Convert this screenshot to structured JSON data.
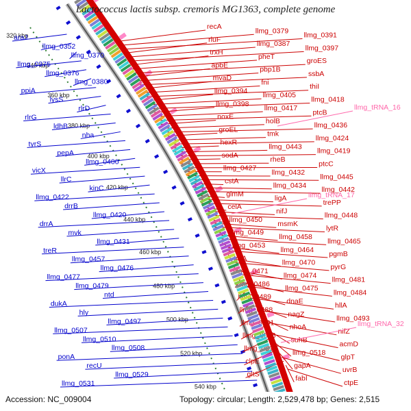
{
  "title": "Lactococcus lactis subsp. cremoris MG1363, complete genome",
  "footer": {
    "accession": "Accession: NC_009004",
    "topology": "Topology: circular; Length: 2,529,478 bp; Genes: 2,515"
  },
  "colors": {
    "forward_strand": "#cc0000",
    "reverse_strand": "#0000cc",
    "trna": "#ff66aa",
    "backbone": "#888888",
    "tick": "#2e7d32"
  },
  "ruler_labels": [
    "320 kbp",
    "340 kbp",
    "360 kbp",
    "380 kbp",
    "400 kbp",
    "420 kbp",
    "440 kbp",
    "460 kbp",
    "480 kbp",
    "500 kbp",
    "520 kbp",
    "540 kbp"
  ],
  "genes_blue": [
    "araJ",
    "llmg_0352",
    "llmg_0370",
    "llmg_0375",
    "llmg_0376",
    "llmg_0380",
    "ppiA",
    "lysS",
    "rlrD",
    "rlrG",
    "ldhB",
    "nha",
    "tyrS",
    "pepA",
    "llmg_0400",
    "vicX",
    "llrC",
    "kinC",
    "llmg_0422",
    "drrB",
    "llmg_0420",
    "drrA",
    "mvk",
    "llmg_0431",
    "treR",
    "llmg_0457",
    "llmg_0476",
    "llmg_0477",
    "llmg_0479",
    "ntd",
    "dukA",
    "hly",
    "llmg_0497",
    "llmg_0507",
    "llmg_0510",
    "llmg_0508",
    "ponA",
    "recU",
    "llmg_0529",
    "llmg_0531"
  ],
  "genes_red": [
    "recA",
    "llmg_0379",
    "llmg_0391",
    "rluF",
    "llmg_0387",
    "llmg_0397",
    "trxH",
    "pheT",
    "groES",
    "apbE",
    "pbp1B",
    "ssbA",
    "mvaD",
    "fni",
    "thiI",
    "llmg_0394",
    "llmg_0405",
    "llmg_0418",
    "llmg_0398",
    "llmg_0417",
    "ptcB",
    "noxE",
    "holB",
    "llmg_0436",
    "groEL",
    "tmk",
    "llmg_0424",
    "hexR",
    "llmg_0443",
    "llmg_0419",
    "sodA",
    "rheB",
    "ptcC",
    "llmg_0427",
    "llmg_0432",
    "llmg_0445",
    "cstA",
    "llmg_0434",
    "llmg_0442",
    "glmM",
    "ligA",
    "trePP",
    "celA",
    "nifJ",
    "llmg_0448",
    "llmg_0450",
    "msmK",
    "lytR",
    "llmg_0449",
    "llmg_0458",
    "llmg_0465",
    "llmg_0453",
    "llmg_0464",
    "pgmB",
    "truA",
    "llmg_0470",
    "pyrG",
    "llmg_0471",
    "llmg_0474",
    "llmg_0481",
    "llmg_0486",
    "llmg_0475",
    "llmg_0484",
    "llmg_0489",
    "dnaE",
    "hllA",
    "llmg_0488",
    "nagZ",
    "llmg_0493",
    "llmg_0501",
    "nhoA",
    "nifZ",
    "llmg_0506",
    "suhB",
    "acmD",
    "llmg_0513",
    "llmg_0518",
    "glpT",
    "clpE",
    "gapA",
    "uvrB",
    "gltS",
    "fabI",
    "ctpE"
  ],
  "genes_trna": [
    "llmg_tRNA_16",
    "llmg_tRNA_17",
    "llmg_tRNA_32"
  ]
}
